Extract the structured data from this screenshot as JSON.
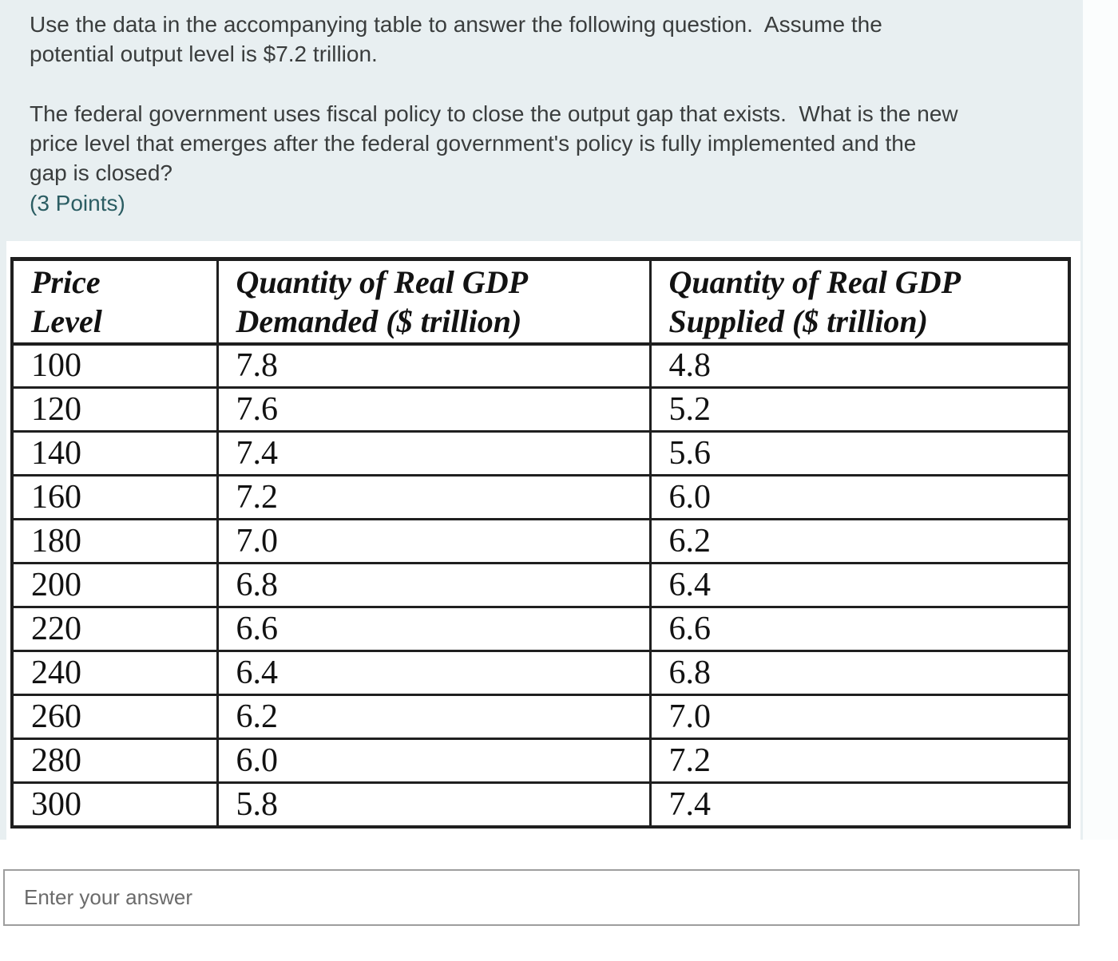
{
  "page": {
    "background": "#ffffff",
    "card_background": "#e8eff1"
  },
  "question": {
    "paragraph1_lines": [
      "Use the data in the accompanying table to answer the following question.  Assume the",
      "potential output level is $7.2 trillion."
    ],
    "paragraph2_lines": [
      "The federal government uses fiscal policy to close the output gap that exists.  What is the new",
      "price level that emerges after the federal government's policy is fully implemented and the",
      "gap is closed?"
    ],
    "points_label": "(3 Points)",
    "text_color": "#3a3d3d",
    "points_color": "#2b5d63"
  },
  "table": {
    "border_color": "#1f1f1f",
    "headers": [
      {
        "line1": "Price",
        "line2": "Level"
      },
      {
        "line1": "Quantity of Real GDP",
        "line2": "Demanded ($ trillion)"
      },
      {
        "line1": "Quantity of Real GDP",
        "line2": "Supplied ($ trillion)"
      }
    ],
    "rows": [
      {
        "price_level": "100",
        "demanded": "7.8",
        "supplied": "4.8"
      },
      {
        "price_level": "120",
        "demanded": "7.6",
        "supplied": "5.2"
      },
      {
        "price_level": "140",
        "demanded": "7.4",
        "supplied": "5.6"
      },
      {
        "price_level": "160",
        "demanded": "7.2",
        "supplied": "6.0"
      },
      {
        "price_level": "180",
        "demanded": "7.0",
        "supplied": "6.2"
      },
      {
        "price_level": "200",
        "demanded": "6.8",
        "supplied": "6.4"
      },
      {
        "price_level": "220",
        "demanded": "6.6",
        "supplied": "6.6"
      },
      {
        "price_level": "240",
        "demanded": "6.4",
        "supplied": "6.8"
      },
      {
        "price_level": "260",
        "demanded": "6.2",
        "supplied": "7.0"
      },
      {
        "price_level": "280",
        "demanded": "6.0",
        "supplied": "7.2"
      },
      {
        "price_level": "300",
        "demanded": "5.8",
        "supplied": "7.4"
      }
    ]
  },
  "answer": {
    "placeholder": "Enter your answer"
  }
}
